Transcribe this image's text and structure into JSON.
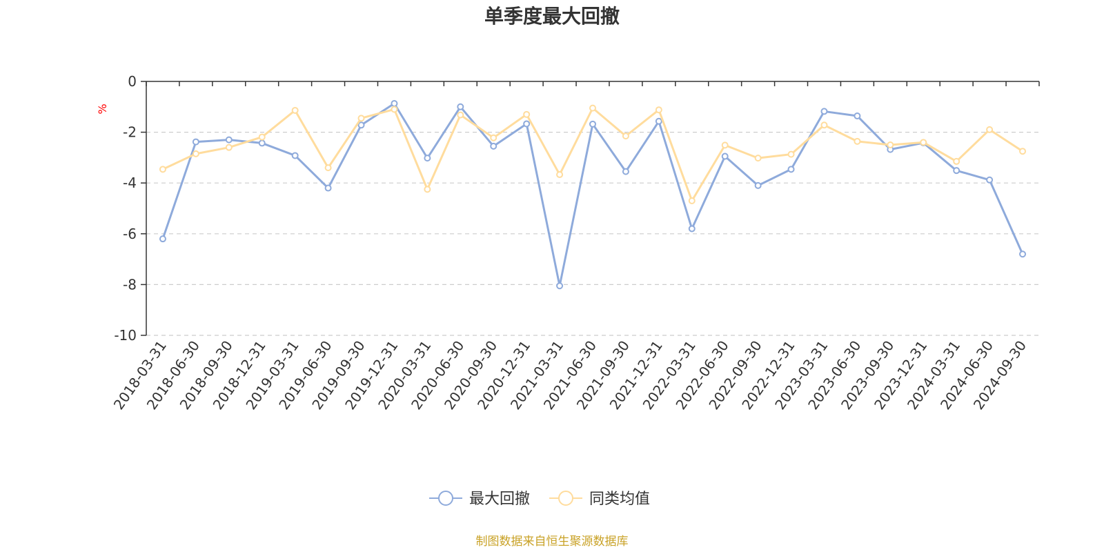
{
  "chart_data": {
    "type": "line",
    "title": "单季度最大回撤",
    "ylabel": "%",
    "ylim": [
      -10,
      0
    ],
    "yticks": [
      0,
      -2,
      -4,
      -6,
      -8,
      -10
    ],
    "grid": "horizontal-dashed",
    "legend_position": "bottom-center",
    "x": [
      "2018-03-31",
      "2018-06-30",
      "2018-09-30",
      "2018-12-31",
      "2019-03-31",
      "2019-06-30",
      "2019-09-30",
      "2019-12-31",
      "2020-03-31",
      "2020-06-30",
      "2020-09-30",
      "2020-12-31",
      "2021-03-31",
      "2021-06-30",
      "2021-09-30",
      "2021-12-31",
      "2022-03-31",
      "2022-06-30",
      "2022-09-30",
      "2022-12-31",
      "2023-03-31",
      "2023-06-30",
      "2023-09-30",
      "2023-12-31",
      "2024-03-31",
      "2024-06-30",
      "2024-09-30"
    ],
    "series": [
      {
        "name": "最大回撤",
        "color": "#8eaadb",
        "values": [
          -6.2,
          -2.38,
          -2.3,
          -2.43,
          -2.92,
          -4.2,
          -1.72,
          -0.87,
          -3.02,
          -1.0,
          -2.55,
          -1.67,
          -8.05,
          -1.68,
          -3.55,
          -1.57,
          -5.8,
          -2.95,
          -4.1,
          -3.46,
          -1.18,
          -1.36,
          -2.68,
          -2.42,
          -3.51,
          -3.88,
          -6.8
        ]
      },
      {
        "name": "同类均值",
        "color": "#ffdc9d",
        "values": [
          -3.46,
          -2.85,
          -2.6,
          -2.19,
          -1.14,
          -3.4,
          -1.45,
          -1.1,
          -4.25,
          -1.32,
          -2.22,
          -1.3,
          -3.67,
          -1.05,
          -2.15,
          -1.12,
          -4.7,
          -2.51,
          -3.02,
          -2.87,
          -1.72,
          -2.36,
          -2.5,
          -2.4,
          -3.15,
          -1.9,
          -2.75
        ]
      }
    ]
  },
  "source_text": "制图数据来自恒生聚源数据库",
  "colors": {
    "axis": "#333333",
    "grid": "#cccccc",
    "unit": "#ff0000",
    "source": "#c9a227"
  }
}
